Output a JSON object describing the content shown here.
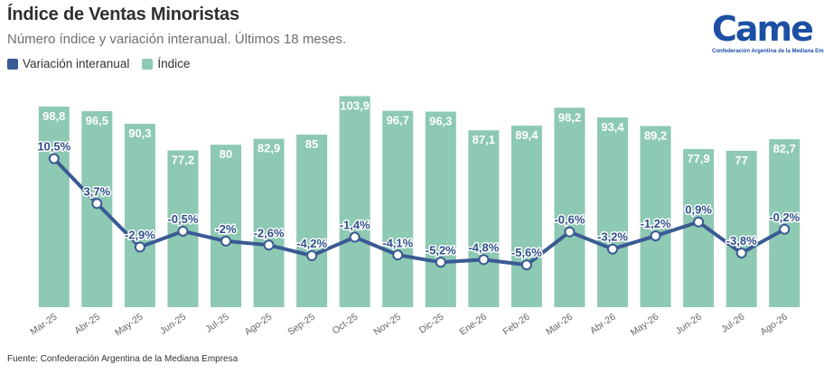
{
  "header": {
    "title": "Índice de Ventas Minoristas",
    "subtitle": "Número índice y variación interanual. Últimos 18 meses."
  },
  "legend": {
    "line_label": "Variación interanual",
    "bar_label": "Índice"
  },
  "logo": {
    "word": "Came",
    "subtitle": "Confederación Argentina de la Mediana Empresa"
  },
  "footer": {
    "source": "Fuente: Confederación Argentina de la Mediana Empresa"
  },
  "colors": {
    "bar": "#8dc9b3",
    "bar_label_text": "#ffffff",
    "line": "#3b5a94",
    "point_fill": "#ffffff",
    "line_label_text": "#2f4f8a",
    "axis_text": "#666666"
  },
  "chart_data": {
    "type": "bar",
    "categories": [
      "Mar-25",
      "Abr-25",
      "May-25",
      "Jun-25",
      "Jul-25",
      "Ago-25",
      "Sep-25",
      "Oct-25",
      "Nov-25",
      "Dic-25",
      "Ene-26",
      "Feb-26",
      "Mar-26",
      "Abr-26",
      "May-26",
      "Jun-26",
      "Jul-26",
      "Ago-26"
    ],
    "series": [
      {
        "name": "Índice",
        "kind": "bar",
        "values": [
          98.8,
          96.5,
          90.3,
          77.2,
          80,
          82.9,
          85,
          103.9,
          96.7,
          96.3,
          87.1,
          89.4,
          98.2,
          93.4,
          89.2,
          77.9,
          77,
          82.7
        ],
        "labels": [
          "98,8",
          "96,5",
          "90,3",
          "77,2",
          "80",
          "82,9",
          "85",
          "103,9",
          "96,7",
          "96,3",
          "87,1",
          "89,4",
          "98,2",
          "93,4",
          "89,2",
          "77,9",
          "77",
          "82,7"
        ]
      },
      {
        "name": "Variación interanual",
        "kind": "line",
        "values": [
          10.5,
          3.7,
          -2.9,
          -0.5,
          -2,
          -2.6,
          -4.2,
          -1.4,
          -4.1,
          -5.2,
          -4.8,
          -5.6,
          -0.6,
          -3.2,
          -1.2,
          0.9,
          -3.8,
          -0.2
        ],
        "labels": [
          "10,5%",
          "3,7%",
          "-2,9%",
          "-0,5%",
          "-2%",
          "-2,6%",
          "-4,2%",
          "-1,4%",
          "-4,1%",
          "-5,2%",
          "-4,8%",
          "-5,6%",
          "-0,6%",
          "-3,2%",
          "-1,2%",
          "0,9%",
          "-3,8%",
          "-0,2%"
        ]
      }
    ],
    "bar_ylim": [
      0,
      105
    ],
    "line_ylim": [
      -12,
      14
    ],
    "xlabel": "",
    "ylabel": "",
    "grid": false,
    "legend_position": "top-left"
  }
}
